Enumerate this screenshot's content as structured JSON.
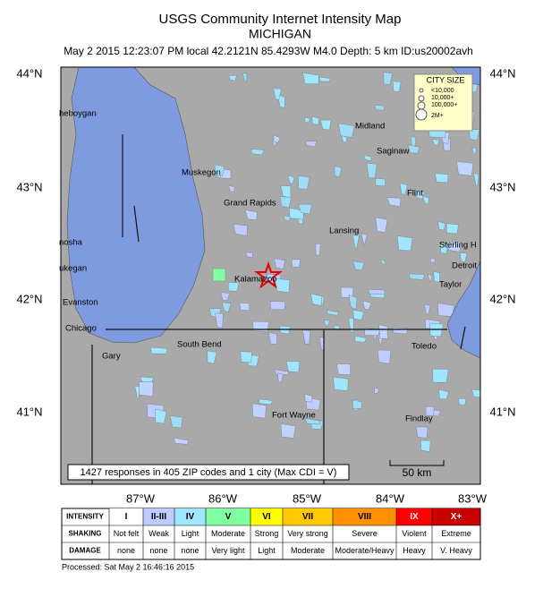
{
  "header": {
    "title": "USGS Community Internet Intensity Map",
    "region": "MICHIGAN",
    "info": "May 2 2015 12:23:07 PM local 42.2121N 85.4293W M4.0 Depth: 5 km ID:us20002avh"
  },
  "map": {
    "lat_labels": [
      "44°N",
      "43°N",
      "42°N",
      "41°N"
    ],
    "lon_labels": [
      "87°W",
      "86°W",
      "85°W",
      "84°W",
      "83°W"
    ],
    "cities": [
      "heboygan",
      "Muskegon",
      "Midland",
      "Saginaw",
      "Flint",
      "Grand Rapids",
      "Lansing",
      "Sterling H",
      "nosha",
      "Detroit",
      "ukegan",
      "Kalamazoo",
      "Taylor",
      "Evanston",
      "Chicago",
      "South Bend",
      "Toledo",
      "Gary",
      "Fort Wayne",
      "Findlay"
    ],
    "responses": "1427 responses in 405 ZIP codes and 1 city (Max CDI = V)",
    "scale": "50 km",
    "legend": {
      "title": "CITY SIZE",
      "items": [
        "<10,000",
        "10,000+",
        "100,000+",
        "2M+"
      ]
    }
  },
  "intensity_table": {
    "row_labels": [
      "INTENSITY",
      "SHAKING",
      "DAMAGE"
    ],
    "columns": [
      {
        "intensity": "I",
        "shaking": "Not felt",
        "damage": "none",
        "color": "#ffffff"
      },
      {
        "intensity": "II-III",
        "shaking": "Weak",
        "damage": "none",
        "color": "#bfccff"
      },
      {
        "intensity": "IV",
        "shaking": "Light",
        "damage": "none",
        "color": "#a0e6ff"
      },
      {
        "intensity": "V",
        "shaking": "Moderate",
        "damage": "Very light",
        "color": "#80ffa0"
      },
      {
        "intensity": "VI",
        "shaking": "Strong",
        "damage": "Light",
        "color": "#ffff00"
      },
      {
        "intensity": "VII",
        "shaking": "Very strong",
        "damage": "Moderate",
        "color": "#ffc800"
      },
      {
        "intensity": "VIII",
        "shaking": "Severe",
        "damage": "Moderate/Heavy",
        "color": "#ff9100"
      },
      {
        "intensity": "IX",
        "shaking": "Violent",
        "damage": "Heavy",
        "color": "#ff0000"
      },
      {
        "intensity": "X+",
        "shaking": "Extreme",
        "damage": "V. Heavy",
        "color": "#c80000"
      }
    ]
  },
  "footer": "Processed: Sat May  2 16:46:16 2015"
}
